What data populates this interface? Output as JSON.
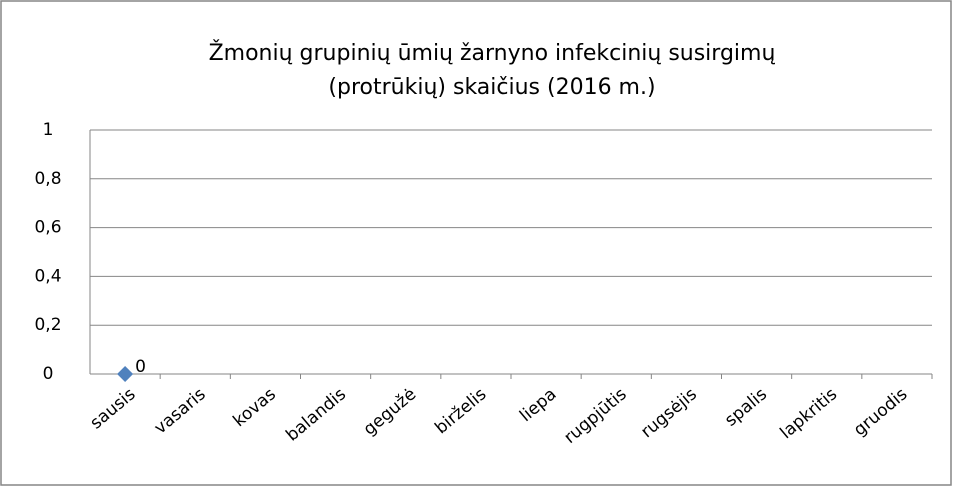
{
  "chart_data": {
    "type": "line",
    "title": [
      "Žmonių grupinių ūmių žarnyno infekcinių susirgimų",
      "(protrūkių) skaičius (2016 m.)"
    ],
    "categories": [
      "sausis",
      "vasaris",
      "kovas",
      "balandis",
      "gegužė",
      "birželis",
      "liepa",
      "rugpjūtis",
      "rugsėjis",
      "spalis",
      "lapkritis",
      "gruodis"
    ],
    "series": [
      {
        "color": "#4f81bd",
        "values": [
          0,
          null,
          null,
          null,
          null,
          null,
          null,
          null,
          null,
          null,
          null,
          null
        ]
      }
    ],
    "ylim": [
      0,
      1
    ],
    "yticks": [
      0,
      {
        "value": 0.2,
        "label": "0,2"
      },
      {
        "value": 0.4,
        "label": "0,4"
      },
      {
        "value": 0.6,
        "label": "0,6"
      },
      {
        "value": 0.8,
        "label": "0,8"
      },
      1
    ],
    "grid": true
  }
}
